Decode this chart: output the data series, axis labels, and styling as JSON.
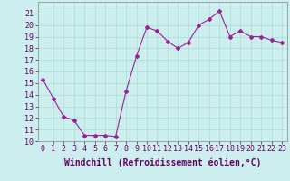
{
  "x": [
    0,
    1,
    2,
    3,
    4,
    5,
    6,
    7,
    8,
    9,
    10,
    11,
    12,
    13,
    14,
    15,
    16,
    17,
    18,
    19,
    20,
    21,
    22,
    23
  ],
  "y": [
    15.3,
    13.7,
    12.1,
    11.8,
    10.5,
    10.5,
    10.5,
    10.4,
    14.3,
    17.3,
    19.8,
    19.5,
    18.6,
    18.0,
    18.5,
    20.0,
    20.5,
    21.2,
    19.0,
    19.5,
    19.0,
    19.0,
    18.7,
    18.5
  ],
  "line_color": "#992299",
  "marker": "D",
  "markersize": 2,
  "linewidth": 0.8,
  "bg_color": "#cceeee",
  "grid_color": "#aaddcc",
  "xlabel": "Windchill (Refroidissement éolien,°C)",
  "xlabel_fontsize": 7,
  "tick_fontsize": 6,
  "ylim": [
    10,
    22
  ],
  "yticks": [
    10,
    11,
    12,
    13,
    14,
    15,
    16,
    17,
    18,
    19,
    20,
    21
  ],
  "xticks": [
    0,
    1,
    2,
    3,
    4,
    5,
    6,
    7,
    8,
    9,
    10,
    11,
    12,
    13,
    14,
    15,
    16,
    17,
    18,
    19,
    20,
    21,
    22,
    23
  ]
}
